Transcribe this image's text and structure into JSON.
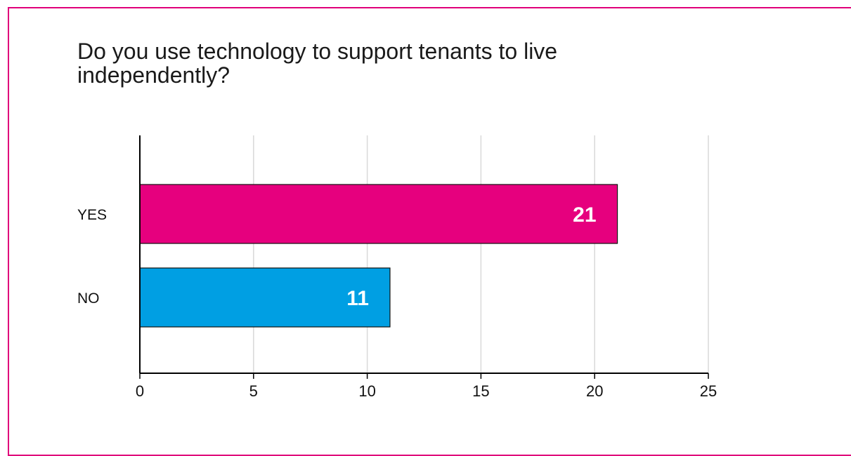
{
  "chart_data": {
    "type": "bar",
    "orientation": "horizontal",
    "title": "Do you use technology to support tenants to live independently?",
    "categories": [
      "YES",
      "NO"
    ],
    "values": [
      21,
      11
    ],
    "data_labels": [
      "21",
      "11"
    ],
    "colors": [
      "#e6007e",
      "#009fe3"
    ],
    "xlim": [
      0,
      25
    ],
    "xticks": [
      0,
      5,
      10,
      15,
      20,
      25
    ],
    "xtick_labels": [
      "0",
      "5",
      "10",
      "15",
      "20",
      "25"
    ],
    "grid": "vertical",
    "legend": "none"
  },
  "theme": {
    "border_color": "#e0007a",
    "grid_color": "#d9d9d9",
    "axis_color": "#000000"
  }
}
